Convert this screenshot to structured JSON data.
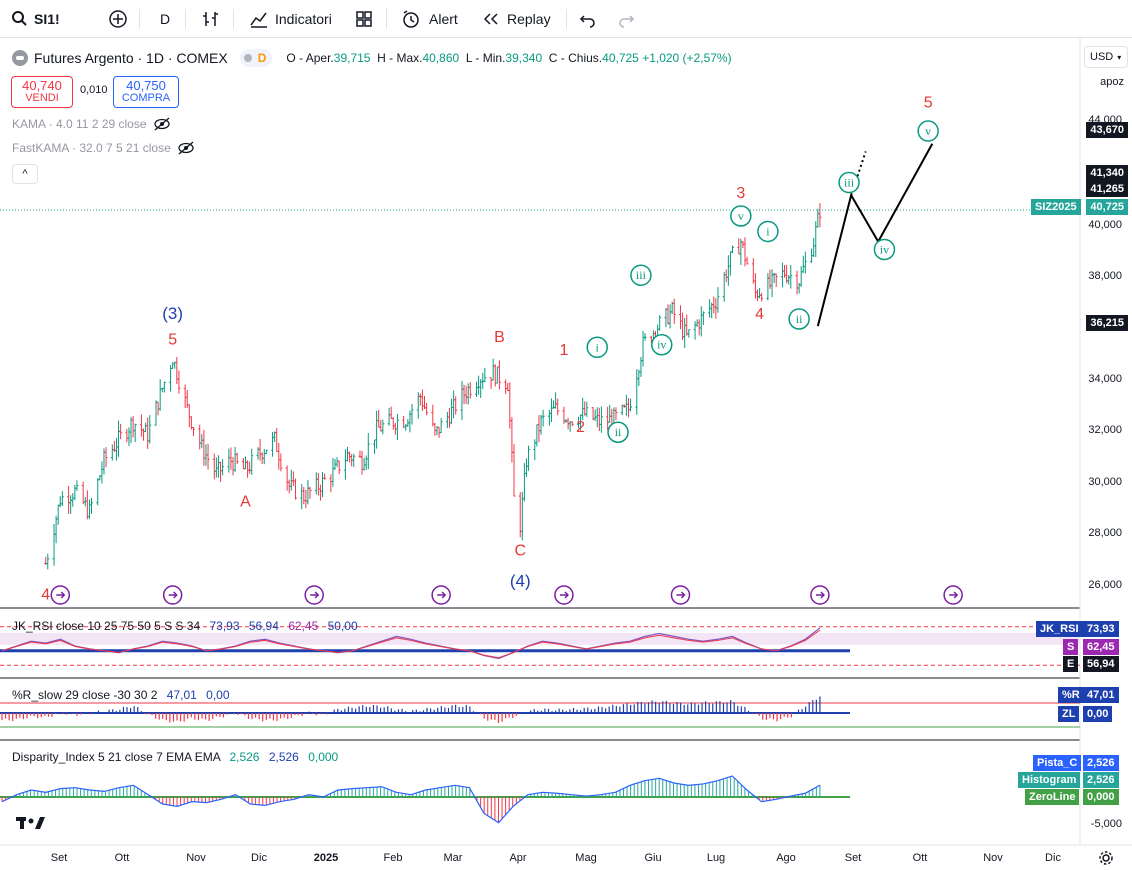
{
  "toolbar": {
    "symbol": "SI1!",
    "interval": "D",
    "indicators_label": "Indicatori",
    "alert_label": "Alert",
    "replay_label": "Replay"
  },
  "legend": {
    "title": "Futures Argento · 1D · COMEX",
    "pill_text": "D",
    "open_label": "O - Aper.",
    "open_value": "39,715",
    "high_label": "H - Max.",
    "high_value": "40,860",
    "low_label": "L - Min.",
    "low_value": "39,340",
    "close_label": "C - Chius.",
    "close_value": "40,725",
    "change": "+1,020 (+2,57%)",
    "sell_price": "40,740",
    "sell_label": "VENDI",
    "spread": "0,010",
    "buy_price": "40,750",
    "buy_label": "COMPRA",
    "ind1": "KAMA · 4.0 11 2 29 close",
    "ind2": "FastKAMA · 32.0 7 5 21 close",
    "collapse_glyph": "^"
  },
  "panes": {
    "rsi_title": "JK_RSI close 10 25 75 50 5 S S 34",
    "rsi_v1": "73,93",
    "rsi_v2": "56,94",
    "rsi_v3": "62,45",
    "rsi_v4": "50,00",
    "wr_title": "%R_slow 29 close -30 30 2",
    "wr_v1": "47,01",
    "wr_v2": "0,00",
    "disp_title": "Disparity_Index 5 21 close 7 EMA EMA",
    "disp_v1": "2,526",
    "disp_v2": "2,526",
    "disp_v3": "0,000"
  },
  "scale": {
    "currency": "USD",
    "mode": "apoz",
    "ticks": [
      "44,000",
      "40,000",
      "38,000",
      "34,000",
      "32,000",
      "30,000",
      "28,000",
      "26,000"
    ],
    "tags": {
      "t43670": "43,670",
      "t41340": "41,340",
      "t41265": "41,265",
      "ticker": "SIZ2025",
      "t40725": "40,725",
      "t36215": "36,215"
    },
    "rsi_tags": [
      {
        "label": "JK_RSI",
        "value": "73,93"
      },
      {
        "label": "S",
        "value": "62,45"
      },
      {
        "label": "E",
        "value": "56,94"
      }
    ],
    "wr_tags": [
      {
        "label": "%R",
        "value": "47,01"
      },
      {
        "label": "ZL",
        "value": "0,00"
      }
    ],
    "disp_tags": [
      {
        "label": "Pista_C",
        "value": "2,526"
      },
      {
        "label": "Histogram",
        "value": "2,526"
      },
      {
        "label": "ZeroLine",
        "value": "0,000"
      }
    ],
    "disp_tick": "-5,000"
  },
  "time_axis": [
    "Set",
    "Ott",
    "Nov",
    "Dic",
    "2025",
    "Feb",
    "Mar",
    "Apr",
    "Mag",
    "Giu",
    "Lug",
    "Ago",
    "Set",
    "Ott",
    "Nov",
    "Dic"
  ],
  "colors": {
    "up": "#089981",
    "down": "#f23645",
    "wave_red": "#e53935",
    "wave_blue": "#1e40af",
    "wave_green": "#089981",
    "projection": "#000000"
  },
  "chart_data": {
    "type": "ohlc",
    "title": "Futures Argento · 1D · COMEX",
    "ylim": [
      25.5,
      45.0
    ],
    "y_scale": "linear",
    "close_series": {
      "name": "SI1!",
      "x": [
        "2024-08-22",
        "2024-08-29",
        "2024-09-05",
        "2024-09-12",
        "2024-09-19",
        "2024-09-26",
        "2024-10-03",
        "2024-10-10",
        "2024-10-17",
        "2024-10-22",
        "2024-10-29",
        "2024-11-05",
        "2024-11-12",
        "2024-11-19",
        "2024-11-26",
        "2024-12-03",
        "2024-12-10",
        "2024-12-17",
        "2024-12-24",
        "2024-12-31",
        "2025-01-07",
        "2025-01-14",
        "2025-01-21",
        "2025-01-28",
        "2025-02-04",
        "2025-02-11",
        "2025-02-18",
        "2025-02-25",
        "2025-03-04",
        "2025-03-11",
        "2025-03-18",
        "2025-03-25",
        "2025-04-01",
        "2025-04-04",
        "2025-04-07",
        "2025-04-10",
        "2025-04-17",
        "2025-04-24",
        "2025-05-01",
        "2025-05-08",
        "2025-05-15",
        "2025-05-22",
        "2025-05-29",
        "2025-06-05",
        "2025-06-12",
        "2025-06-19",
        "2025-06-26",
        "2025-07-03",
        "2025-07-10",
        "2025-07-17",
        "2025-07-22",
        "2025-07-29",
        "2025-08-05",
        "2025-08-12",
        "2025-08-19",
        "2025-08-26",
        "2025-08-29"
      ],
      "y": [
        27.0,
        29.5,
        29.8,
        29.0,
        31.0,
        31.8,
        32.5,
        32.0,
        33.8,
        35.0,
        33.0,
        31.5,
        30.5,
        31.0,
        30.6,
        31.3,
        31.8,
        30.0,
        29.6,
        30.0,
        30.5,
        31.2,
        31.0,
        32.2,
        32.5,
        32.6,
        33.5,
        32.0,
        32.8,
        33.6,
        34.2,
        34.4,
        34.0,
        29.5,
        28.5,
        31.0,
        32.5,
        33.0,
        32.6,
        32.8,
        32.5,
        32.6,
        33.0,
        35.5,
        36.2,
        36.8,
        35.8,
        36.5,
        37.2,
        38.8,
        39.5,
        37.5,
        37.8,
        38.3,
        38.0,
        39.5,
        40.725
      ]
    },
    "wave_labels": [
      {
        "label": "4",
        "date": "2024-08-22",
        "value": 25.6
      },
      {
        "label": "(3)",
        "date": "2024-10-22",
        "value": 36.5
      },
      {
        "label": "5",
        "date": "2024-10-22",
        "value": 35.5
      },
      {
        "label": "A",
        "date": "2024-11-26",
        "value": 29.2
      },
      {
        "label": "B",
        "date": "2025-03-28",
        "value": 35.6
      },
      {
        "label": "C",
        "date": "2025-04-07",
        "value": 27.3
      },
      {
        "label": "(4)",
        "date": "2025-04-07",
        "value": 26.1
      },
      {
        "label": "1",
        "date": "2025-04-28",
        "value": 35.1
      },
      {
        "label": "2",
        "date": "2025-05-06",
        "value": 32.1
      },
      {
        "label": "3",
        "date": "2025-07-22",
        "value": 41.2
      },
      {
        "label": "4",
        "date": "2025-07-31",
        "value": 36.5
      },
      {
        "label": "5",
        "date": "2025-10-20",
        "value": 44.7
      },
      {
        "label": "i",
        "date": "2025-05-14",
        "value": 35.2
      },
      {
        "label": "ii",
        "date": "2025-05-24",
        "value": 31.9
      },
      {
        "label": "iii",
        "date": "2025-06-04",
        "value": 38.0
      },
      {
        "label": "iv",
        "date": "2025-06-14",
        "value": 35.3
      },
      {
        "label": "v",
        "date": "2025-07-22",
        "value": 40.3
      },
      {
        "label": "i",
        "date": "2025-08-04",
        "value": 39.7
      },
      {
        "label": "ii",
        "date": "2025-08-19",
        "value": 36.3
      },
      {
        "label": "iii",
        "date": "2025-09-12",
        "value": 41.6
      },
      {
        "label": "iv",
        "date": "2025-09-29",
        "value": 39.0
      },
      {
        "label": "v",
        "date": "2025-10-20",
        "value": 43.6
      }
    ],
    "projection_path": [
      {
        "date": "2025-08-28",
        "value": 36.215
      },
      {
        "date": "2025-09-13",
        "value": 41.3
      },
      {
        "date": "2025-09-26",
        "value": 39.5
      },
      {
        "date": "2025-10-22",
        "value": 43.3
      }
    ],
    "projection_dotted": [
      {
        "date": "2025-09-13",
        "value": 41.3
      },
      {
        "date": "2025-09-20",
        "value": 43.0
      }
    ],
    "horizontal_levels": [
      40.725
    ],
    "event_marker_dates": [
      "2024-08-29",
      "2024-10-22",
      "2024-12-29",
      "2025-02-28",
      "2025-04-28",
      "2025-06-23",
      "2025-08-29",
      "2025-11-01"
    ],
    "oscillators": {
      "jk_rsi": {
        "name": "JK_RSI",
        "values": [
          50,
          55,
          60,
          58,
          62,
          55,
          52,
          50,
          48,
          52,
          55,
          60,
          58,
          55,
          50,
          52,
          55,
          60,
          62,
          58,
          55,
          52,
          50,
          48,
          50,
          55,
          60,
          65,
          62,
          58,
          55,
          52,
          50,
          45,
          42,
          48,
          55,
          60,
          58,
          55,
          52,
          55,
          58,
          60,
          65,
          68,
          65,
          62,
          60,
          62,
          65,
          58,
          52,
          50,
          55,
          62,
          73.93
        ],
        "signal_S": 62.45,
        "signal_E": 56.94,
        "mid": 50.0
      },
      "r_slow": {
        "name": "%R",
        "values": [
          -20,
          -18,
          -10,
          -12,
          0,
          -5,
          0,
          5,
          10,
          20,
          -5,
          -20,
          -25,
          -15,
          -20,
          -10,
          0,
          -15,
          -20,
          -18,
          -10,
          0,
          -5,
          10,
          15,
          20,
          18,
          10,
          5,
          10,
          15,
          20,
          18,
          -15,
          -25,
          -10,
          5,
          10,
          8,
          10,
          12,
          15,
          20,
          25,
          30,
          32,
          28,
          25,
          28,
          30,
          32,
          10,
          -15,
          -20,
          -10,
          20,
          47.01
        ],
        "zero": 0.0
      },
      "disparity": {
        "name": "Pista_C",
        "values": [
          -1.0,
          0.5,
          1.5,
          1.0,
          1.8,
          2.0,
          1.5,
          1.2,
          2.0,
          2.5,
          0.5,
          -1.5,
          -2.0,
          -1.0,
          -1.2,
          -0.5,
          0.5,
          -1.5,
          -1.8,
          -1.0,
          -0.5,
          0.5,
          0.0,
          1.5,
          1.8,
          2.0,
          2.2,
          1.0,
          0.5,
          1.5,
          2.0,
          2.5,
          2.0,
          -3.5,
          -5.5,
          -2.0,
          0.5,
          1.0,
          0.8,
          0.5,
          0.2,
          0.5,
          1.0,
          2.5,
          3.5,
          4.0,
          3.0,
          2.5,
          2.8,
          3.5,
          4.5,
          1.5,
          -1.0,
          -0.5,
          0.2,
          0.8,
          2.526
        ],
        "ema": 2.526,
        "zero": 0.0
      }
    }
  }
}
